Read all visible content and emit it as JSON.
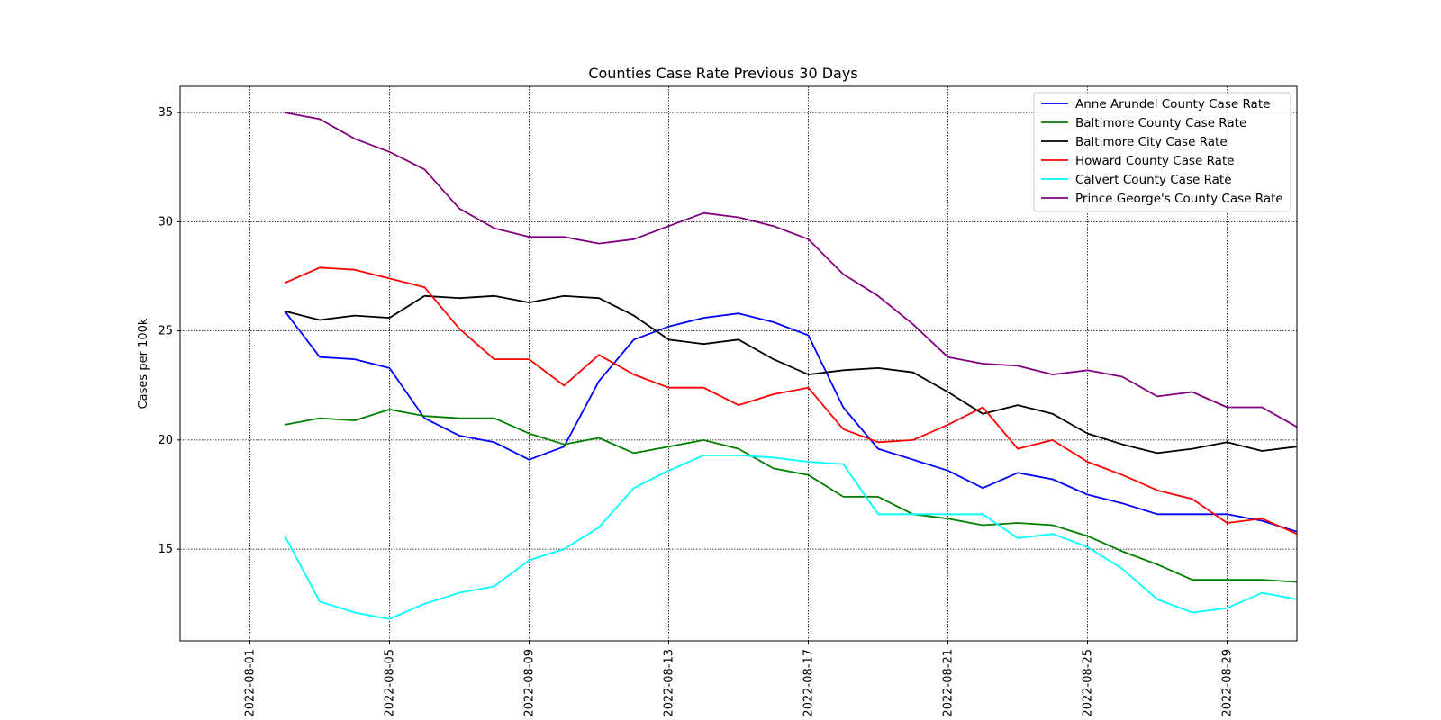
{
  "chart_data": {
    "type": "line",
    "title": "Counties Case Rate Previous 30 Days",
    "xlabel": "",
    "ylabel": "Cases per 100k",
    "x_tick_labels": [
      "2022-08-01",
      "2022-08-05",
      "2022-08-09",
      "2022-08-13",
      "2022-08-17",
      "2022-08-21",
      "2022-08-25",
      "2022-08-29"
    ],
    "y_ticks": [
      15,
      20,
      25,
      30,
      35
    ],
    "xlim": [
      "2022-07-30",
      "2022-08-31"
    ],
    "ylim": [
      10.8,
      36.2
    ],
    "grid": true,
    "legend_position": "top-right",
    "x": [
      "2022-08-02",
      "2022-08-03",
      "2022-08-04",
      "2022-08-05",
      "2022-08-06",
      "2022-08-07",
      "2022-08-08",
      "2022-08-09",
      "2022-08-10",
      "2022-08-11",
      "2022-08-12",
      "2022-08-13",
      "2022-08-14",
      "2022-08-15",
      "2022-08-16",
      "2022-08-17",
      "2022-08-18",
      "2022-08-19",
      "2022-08-20",
      "2022-08-21",
      "2022-08-22",
      "2022-08-23",
      "2022-08-24",
      "2022-08-25",
      "2022-08-26",
      "2022-08-27",
      "2022-08-28",
      "2022-08-29",
      "2022-08-30",
      "2022-08-31"
    ],
    "series": [
      {
        "name": "Anne Arundel County Case Rate",
        "color": "#0000ff",
        "values": [
          25.9,
          23.8,
          23.7,
          23.3,
          21.0,
          20.2,
          19.9,
          19.1,
          19.7,
          22.7,
          24.6,
          25.2,
          25.6,
          25.8,
          25.4,
          24.8,
          21.5,
          19.6,
          19.1,
          18.6,
          17.8,
          18.5,
          18.2,
          17.5,
          17.1,
          16.6,
          16.6,
          16.6,
          16.3,
          15.8
        ]
      },
      {
        "name": "Baltimore County Case Rate",
        "color": "#008000",
        "values": [
          20.7,
          21.0,
          20.9,
          21.4,
          21.1,
          21.0,
          21.0,
          20.3,
          19.8,
          20.1,
          19.4,
          19.7,
          20.0,
          19.6,
          18.7,
          18.4,
          17.4,
          17.4,
          16.6,
          16.4,
          16.1,
          16.2,
          16.1,
          15.6,
          14.9,
          14.3,
          13.6,
          13.6,
          13.6,
          13.5
        ]
      },
      {
        "name": "Baltimore City Case Rate",
        "color": "#000000",
        "values": [
          25.9,
          25.5,
          25.7,
          25.6,
          26.6,
          26.5,
          26.6,
          26.3,
          26.6,
          26.5,
          25.7,
          24.6,
          24.4,
          24.6,
          23.7,
          23.0,
          23.2,
          23.3,
          23.1,
          22.2,
          21.2,
          21.6,
          21.2,
          20.3,
          19.8,
          19.4,
          19.6,
          19.9,
          19.5,
          19.7
        ]
      },
      {
        "name": "Howard County Case Rate",
        "color": "#ff0000",
        "values": [
          27.2,
          27.9,
          27.8,
          27.4,
          27.0,
          25.1,
          23.7,
          23.7,
          22.5,
          23.9,
          23.0,
          22.4,
          22.4,
          21.6,
          22.1,
          22.4,
          20.5,
          19.9,
          20.0,
          20.7,
          21.5,
          19.6,
          20.0,
          19.0,
          18.4,
          17.7,
          17.3,
          16.2,
          16.4,
          15.7
        ]
      },
      {
        "name": "Calvert County Case Rate",
        "color": "#00ffff",
        "values": [
          15.6,
          12.6,
          12.1,
          11.8,
          12.5,
          13.0,
          13.3,
          14.5,
          15.0,
          16.0,
          17.8,
          18.6,
          19.3,
          19.3,
          19.2,
          19.0,
          18.9,
          16.6,
          16.6,
          16.6,
          16.6,
          15.5,
          15.7,
          15.1,
          14.1,
          12.7,
          12.1,
          12.3,
          13.0,
          12.7
        ]
      },
      {
        "name": "Prince George's County Case Rate",
        "color": "#800080",
        "values": [
          35.0,
          34.7,
          33.8,
          33.2,
          32.4,
          30.6,
          29.7,
          29.3,
          29.3,
          29.0,
          29.2,
          29.8,
          30.4,
          30.2,
          29.8,
          29.2,
          27.6,
          26.6,
          25.3,
          23.8,
          23.5,
          23.4,
          23.0,
          23.2,
          22.9,
          22.0,
          22.2,
          21.5,
          21.5,
          20.6
        ]
      }
    ]
  }
}
